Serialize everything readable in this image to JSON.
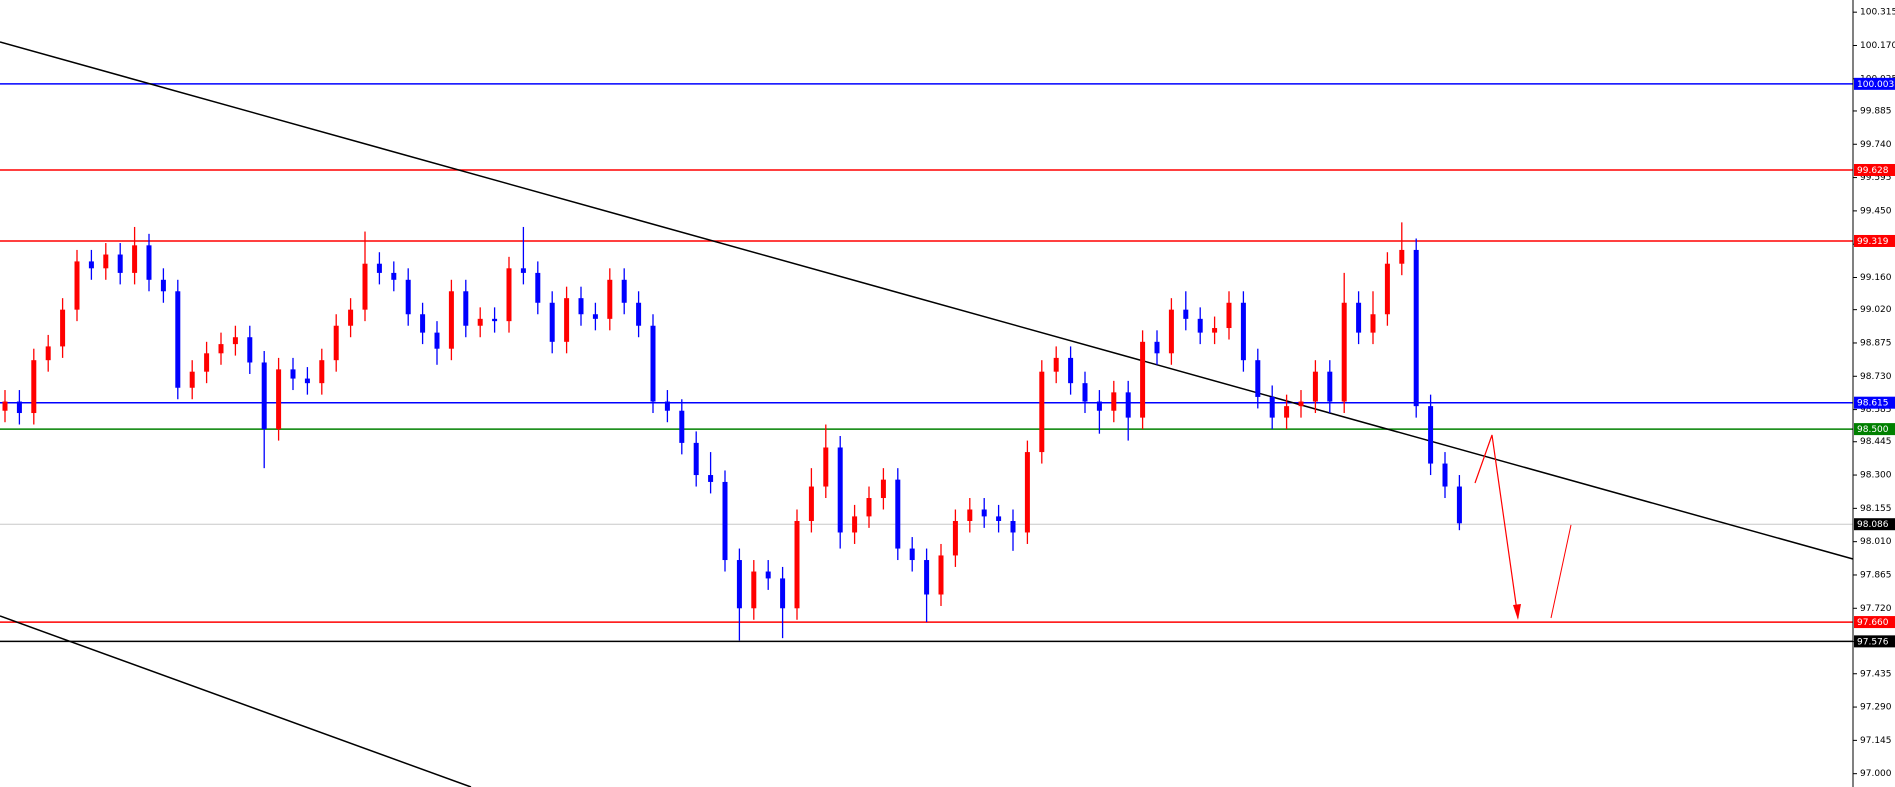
{
  "chart_data": {
    "type": "candlestick",
    "up_color": "#ff0000",
    "down_color": "#0000ff",
    "ylim": [
      96.942,
      100.368
    ],
    "yticks": [
      100.315,
      {
        "value": 100.17,
        "label": "100.170"
      },
      100.025,
      99.885,
      {
        "value": 99.74,
        "label": "99.740"
      },
      99.595,
      {
        "value": 99.45,
        "label": "99.450"
      },
      99.305,
      {
        "value": 99.16,
        "label": "99.160"
      },
      {
        "value": 99.02,
        "label": "99.020"
      },
      98.875,
      {
        "value": 98.73,
        "label": "98.730"
      },
      98.585,
      98.445,
      {
        "value": 98.3,
        "label": "98.300"
      },
      98.155,
      {
        "value": 98.01,
        "label": "98.010"
      },
      97.865,
      {
        "value": 97.72,
        "label": "97.720"
      },
      97.575,
      97.435,
      {
        "value": 97.29,
        "label": "97.290"
      },
      97.145,
      {
        "value": 97,
        "label": "97.000"
      }
    ],
    "levels": [
      {
        "value": 100.003,
        "color": "#0000ff"
      },
      {
        "value": 99.628,
        "color": "#ff0000"
      },
      {
        "value": 99.319,
        "color": "#ff0000"
      },
      {
        "value": 98.615,
        "color": "#0000ff"
      },
      {
        "value": 98.5,
        "label": "98.500",
        "color": "#008000"
      },
      {
        "value": 98.086,
        "color": "#c8c8c8",
        "label_color": "#000000"
      },
      {
        "value": 97.66,
        "label": "97.660",
        "color": "#ff0000"
      },
      {
        "value": 97.576,
        "color": "#000000"
      }
    ],
    "candles": [
      [
        98.58,
        98.67,
        98.53,
        98.62
      ],
      [
        98.62,
        98.67,
        98.52,
        98.57
      ],
      [
        98.57,
        98.85,
        98.52,
        98.8
      ],
      [
        98.8,
        98.91,
        98.75,
        98.86
      ],
      [
        98.86,
        99.07,
        98.81,
        99.02
      ],
      [
        99.02,
        99.28,
        98.97,
        99.23
      ],
      [
        99.23,
        99.28,
        99.15,
        99.2
      ],
      [
        99.2,
        99.31,
        99.15,
        99.26
      ],
      [
        99.26,
        99.31,
        99.13,
        99.18
      ],
      [
        99.18,
        99.38,
        99.13,
        99.3
      ],
      [
        99.3,
        99.35,
        99.1,
        99.15
      ],
      [
        99.15,
        99.2,
        99.05,
        99.1
      ],
      [
        99.1,
        99.15,
        98.63,
        98.68
      ],
      [
        98.68,
        98.8,
        98.63,
        98.75
      ],
      [
        98.75,
        98.88,
        98.7,
        98.83
      ],
      [
        98.83,
        98.92,
        98.78,
        98.87
      ],
      [
        98.87,
        98.95,
        98.82,
        98.9
      ],
      [
        98.9,
        98.95,
        98.74,
        98.79
      ],
      [
        98.79,
        98.84,
        98.33,
        98.5
      ],
      [
        98.5,
        98.81,
        98.45,
        98.76
      ],
      [
        98.76,
        98.81,
        98.67,
        98.72
      ],
      [
        98.72,
        98.77,
        98.65,
        98.7
      ],
      [
        98.7,
        98.85,
        98.65,
        98.8
      ],
      [
        98.8,
        99.0,
        98.75,
        98.95
      ],
      [
        98.95,
        99.07,
        98.9,
        99.02
      ],
      [
        99.02,
        99.36,
        98.97,
        99.22
      ],
      [
        99.22,
        99.27,
        99.13,
        99.18
      ],
      [
        99.18,
        99.23,
        99.1,
        99.15
      ],
      [
        99.15,
        99.2,
        98.95,
        99.0
      ],
      [
        99.0,
        99.05,
        98.87,
        98.92
      ],
      [
        98.92,
        98.97,
        98.78,
        98.85
      ],
      [
        98.85,
        99.15,
        98.8,
        99.1
      ],
      [
        99.1,
        99.15,
        98.9,
        98.95
      ],
      [
        98.95,
        99.03,
        98.9,
        98.98
      ],
      [
        98.98,
        99.03,
        98.92,
        98.97
      ],
      [
        98.97,
        99.25,
        98.92,
        99.2
      ],
      [
        99.2,
        99.38,
        99.13,
        99.18
      ],
      [
        99.18,
        99.23,
        99.0,
        99.05
      ],
      [
        99.05,
        99.1,
        98.83,
        98.88
      ],
      [
        98.88,
        99.12,
        98.83,
        99.07
      ],
      [
        99.07,
        99.12,
        98.95,
        99.0
      ],
      [
        99.0,
        99.05,
        98.93,
        98.98
      ],
      [
        98.98,
        99.2,
        98.93,
        99.15
      ],
      [
        99.15,
        99.2,
        99.0,
        99.05
      ],
      [
        99.05,
        99.1,
        98.9,
        98.95
      ],
      [
        98.95,
        99.0,
        98.57,
        98.62
      ],
      [
        98.62,
        98.67,
        98.53,
        98.58
      ],
      [
        98.58,
        98.63,
        98.39,
        98.44
      ],
      [
        98.44,
        98.49,
        98.25,
        98.3
      ],
      [
        98.3,
        98.4,
        98.22,
        98.27
      ],
      [
        98.27,
        98.32,
        97.88,
        97.93
      ],
      [
        97.93,
        97.98,
        97.58,
        97.72
      ],
      [
        97.72,
        97.93,
        97.67,
        97.88
      ],
      [
        97.88,
        97.93,
        97.8,
        97.85
      ],
      [
        97.85,
        97.9,
        97.59,
        97.72
      ],
      [
        97.72,
        98.15,
        97.67,
        98.1
      ],
      [
        98.1,
        98.33,
        98.05,
        98.25
      ],
      [
        98.25,
        98.52,
        98.2,
        98.42
      ],
      [
        98.42,
        98.47,
        97.98,
        98.05
      ],
      [
        98.05,
        98.17,
        98.0,
        98.12
      ],
      [
        98.12,
        98.25,
        98.07,
        98.2
      ],
      [
        98.2,
        98.33,
        98.15,
        98.28
      ],
      [
        98.28,
        98.33,
        97.93,
        97.98
      ],
      [
        97.98,
        98.03,
        97.88,
        97.93
      ],
      [
        97.93,
        97.98,
        97.66,
        97.78
      ],
      [
        97.78,
        98.0,
        97.73,
        97.95
      ],
      [
        97.95,
        98.15,
        97.9,
        98.1
      ],
      [
        98.1,
        98.2,
        98.05,
        98.15
      ],
      [
        98.15,
        98.2,
        98.07,
        98.12
      ],
      [
        98.12,
        98.17,
        98.05,
        98.1
      ],
      [
        98.1,
        98.15,
        97.97,
        98.05
      ],
      [
        98.05,
        98.45,
        98.0,
        98.4
      ],
      [
        98.4,
        98.8,
        98.35,
        98.75
      ],
      [
        98.75,
        98.86,
        98.7,
        98.81
      ],
      [
        98.81,
        98.86,
        98.65,
        98.7
      ],
      [
        98.7,
        98.75,
        98.57,
        98.62
      ],
      [
        98.62,
        98.67,
        98.48,
        98.58
      ],
      [
        98.58,
        98.71,
        98.53,
        98.66
      ],
      [
        98.66,
        98.71,
        98.45,
        98.55
      ],
      [
        98.55,
        98.93,
        98.5,
        98.88
      ],
      [
        98.88,
        98.93,
        98.78,
        98.83
      ],
      [
        98.83,
        99.07,
        98.78,
        99.02
      ],
      [
        99.02,
        99.1,
        98.93,
        98.98
      ],
      [
        98.98,
        99.03,
        98.87,
        98.92
      ],
      [
        98.92,
        98.99,
        98.87,
        98.94
      ],
      [
        98.94,
        99.1,
        98.89,
        99.05
      ],
      [
        99.05,
        99.1,
        98.75,
        98.8
      ],
      [
        98.8,
        98.85,
        98.59,
        98.64
      ],
      [
        98.64,
        98.69,
        98.5,
        98.55
      ],
      [
        98.55,
        98.65,
        98.5,
        98.6
      ],
      [
        98.6,
        98.67,
        98.55,
        98.62
      ],
      [
        98.62,
        98.8,
        98.57,
        98.75
      ],
      [
        98.75,
        98.8,
        98.57,
        98.62
      ],
      [
        98.62,
        99.18,
        98.57,
        99.05
      ],
      [
        99.05,
        99.1,
        98.87,
        98.92
      ],
      [
        98.92,
        99.1,
        98.87,
        99.0
      ],
      [
        99.0,
        99.27,
        98.95,
        99.22
      ],
      [
        99.22,
        99.4,
        99.17,
        99.28
      ],
      [
        99.28,
        99.33,
        98.55,
        98.6
      ],
      [
        98.6,
        98.65,
        98.3,
        98.35
      ],
      [
        98.35,
        98.4,
        98.2,
        98.25
      ],
      [
        98.25,
        98.3,
        98.06,
        98.09
      ]
    ]
  }
}
